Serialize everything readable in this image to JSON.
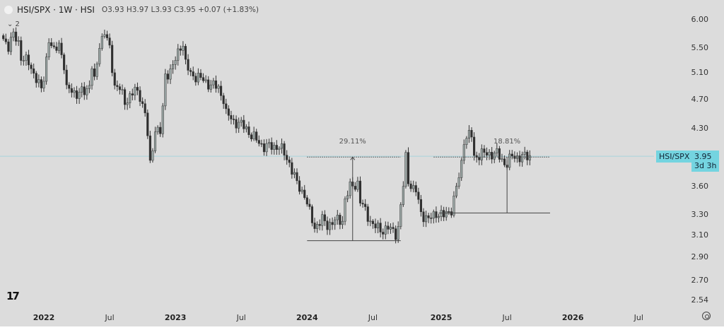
{
  "header": {
    "symbol": "HSI/SPX · 1W · HSI",
    "ohlc": "O3.93 H3.97 L3.93 C3.95 +0.07 (+1.83%)",
    "indicator_collapse": "⌄ 2"
  },
  "price_tag": {
    "symbol": "HSI/SPX",
    "price": "3.95",
    "countdown": "3d 3h"
  },
  "price_axis_ticks": [
    "6.00",
    "5.50",
    "5.10",
    "4.70",
    "4.30",
    "3.60",
    "3.30",
    "3.10",
    "2.90",
    "2.70",
    "2.54"
  ],
  "time_axis_ticks": [
    {
      "label": "2022",
      "date": "2022-01-03",
      "year": true
    },
    {
      "label": "Jul",
      "date": "2022-07-04",
      "year": false
    },
    {
      "label": "2023",
      "date": "2023-01-02",
      "year": true
    },
    {
      "label": "Jul",
      "date": "2023-07-03",
      "year": false
    },
    {
      "label": "2024",
      "date": "2024-01-01",
      "year": true
    },
    {
      "label": "Jul",
      "date": "2024-07-01",
      "year": false
    },
    {
      "label": "2025",
      "date": "2025-01-06",
      "year": true
    },
    {
      "label": "Jul",
      "date": "2025-07-07",
      "year": false
    },
    {
      "label": "2026",
      "date": "2026-01-05",
      "year": true
    },
    {
      "label": "Jul",
      "date": "2026-07-06",
      "year": false
    }
  ],
  "colors": {
    "up": "#9aa6a4",
    "down": "#2e2e2e",
    "price_line": "#a9d4dc",
    "tag": "#74d4e0",
    "background": "#dcdcdc"
  },
  "icons": {
    "logo": "tradingview-logo",
    "settings": "gear-icon",
    "symbol": "symbol-circle-icon"
  },
  "chart_data": {
    "type": "candlestick",
    "interval": "1W",
    "scale": "log",
    "ylim": [
      2.54,
      6.0
    ],
    "current_price": 3.95,
    "close_path": [
      [
        "2021-09-13",
        5.66
      ],
      [
        "2021-09-27",
        5.54
      ],
      [
        "2021-10-11",
        5.72
      ],
      [
        "2021-10-25",
        5.6
      ],
      [
        "2021-11-01",
        5.36
      ],
      [
        "2021-11-22",
        5.25
      ],
      [
        "2021-12-13",
        5.02
      ],
      [
        "2021-12-27",
        4.83
      ],
      [
        "2022-01-03",
        5.02
      ],
      [
        "2022-01-17",
        5.66
      ],
      [
        "2022-01-31",
        5.42
      ],
      [
        "2022-02-14",
        5.6
      ],
      [
        "2022-02-28",
        5.2
      ],
      [
        "2022-03-07",
        4.83
      ],
      [
        "2022-03-21",
        4.86
      ],
      [
        "2022-04-04",
        4.76
      ],
      [
        "2022-04-25",
        4.83
      ],
      [
        "2022-05-09",
        4.91
      ],
      [
        "2022-05-16",
        5.2
      ],
      [
        "2022-05-23",
        4.95
      ],
      [
        "2022-06-06",
        5.57
      ],
      [
        "2022-06-20",
        5.78
      ],
      [
        "2022-07-04",
        5.48
      ],
      [
        "2022-07-18",
        4.91
      ],
      [
        "2022-08-01",
        4.86
      ],
      [
        "2022-08-15",
        4.66
      ],
      [
        "2022-08-22",
        4.71
      ],
      [
        "2022-09-12",
        4.83
      ],
      [
        "2022-09-26",
        4.76
      ],
      [
        "2022-10-10",
        4.5
      ],
      [
        "2022-10-17",
        4.21
      ],
      [
        "2022-10-24",
        3.84
      ],
      [
        "2022-11-07",
        4.3
      ],
      [
        "2022-11-21",
        4.25
      ],
      [
        "2022-11-28",
        4.56
      ],
      [
        "2022-12-05",
        5.07
      ],
      [
        "2022-12-19",
        5.13
      ],
      [
        "2023-01-02",
        5.3
      ],
      [
        "2023-01-16",
        5.55
      ],
      [
        "2023-01-23",
        5.57
      ],
      [
        "2023-01-30",
        5.25
      ],
      [
        "2023-02-13",
        5.07
      ],
      [
        "2023-03-06",
        5.04
      ],
      [
        "2023-03-27",
        4.95
      ],
      [
        "2023-04-17",
        4.91
      ],
      [
        "2023-05-01",
        4.86
      ],
      [
        "2023-05-15",
        4.71
      ],
      [
        "2023-05-22",
        4.5
      ],
      [
        "2023-06-12",
        4.4
      ],
      [
        "2023-07-03",
        4.35
      ],
      [
        "2023-07-17",
        4.3
      ],
      [
        "2023-07-31",
        4.21
      ],
      [
        "2023-08-21",
        4.12
      ],
      [
        "2023-09-04",
        4.07
      ],
      [
        "2023-09-25",
        4.07
      ],
      [
        "2023-10-16",
        4.07
      ],
      [
        "2023-10-30",
        3.98
      ],
      [
        "2023-11-13",
        3.87
      ],
      [
        "2023-12-04",
        3.63
      ],
      [
        "2023-12-25",
        3.51
      ],
      [
        "2024-01-08",
        3.32
      ],
      [
        "2024-01-22",
        3.18
      ],
      [
        "2024-02-12",
        3.25
      ],
      [
        "2024-02-26",
        3.2
      ],
      [
        "2024-03-18",
        3.24
      ],
      [
        "2024-04-08",
        3.25
      ],
      [
        "2024-04-15",
        3.46
      ],
      [
        "2024-04-29",
        3.59
      ],
      [
        "2024-05-20",
        3.64
      ],
      [
        "2024-05-27",
        3.44
      ],
      [
        "2024-06-17",
        3.29
      ],
      [
        "2024-07-01",
        3.2
      ],
      [
        "2024-07-22",
        3.15
      ],
      [
        "2024-08-12",
        3.17
      ],
      [
        "2024-09-02",
        3.12
      ],
      [
        "2024-09-09",
        3.18
      ],
      [
        "2024-09-23",
        3.61
      ],
      [
        "2024-09-30",
        3.94
      ],
      [
        "2024-10-07",
        3.67
      ],
      [
        "2024-10-21",
        3.57
      ],
      [
        "2024-10-28",
        3.55
      ],
      [
        "2024-11-11",
        3.32
      ],
      [
        "2024-12-02",
        3.25
      ],
      [
        "2024-12-23",
        3.32
      ],
      [
        "2025-01-13",
        3.29
      ],
      [
        "2025-02-03",
        3.36
      ],
      [
        "2025-02-10",
        3.46
      ],
      [
        "2025-02-24",
        3.71
      ],
      [
        "2025-03-03",
        3.87
      ],
      [
        "2025-03-10",
        4.16
      ],
      [
        "2025-03-24",
        4.21
      ],
      [
        "2025-03-31",
        4.21
      ],
      [
        "2025-04-07",
        3.94
      ],
      [
        "2025-04-28",
        3.98
      ],
      [
        "2025-05-19",
        3.98
      ],
      [
        "2025-06-09",
        3.98
      ],
      [
        "2025-06-30",
        3.87
      ],
      [
        "2025-07-07",
        3.86
      ],
      [
        "2025-07-21",
        3.95
      ],
      [
        "2025-08-11",
        3.94
      ],
      [
        "2025-09-08",
        3.95
      ]
    ],
    "measures": [
      {
        "label": "29.11%",
        "start": "2024-01-01",
        "end": "2024-09-16",
        "mid": "2024-05-06",
        "low": 3.05,
        "high": 3.94
      },
      {
        "label": "18.81%",
        "start": "2024-12-30",
        "end": "2025-11-03",
        "mid": "2025-07-07",
        "low": 3.32,
        "high": 3.94,
        "top_start": "2024-12-16"
      }
    ]
  }
}
